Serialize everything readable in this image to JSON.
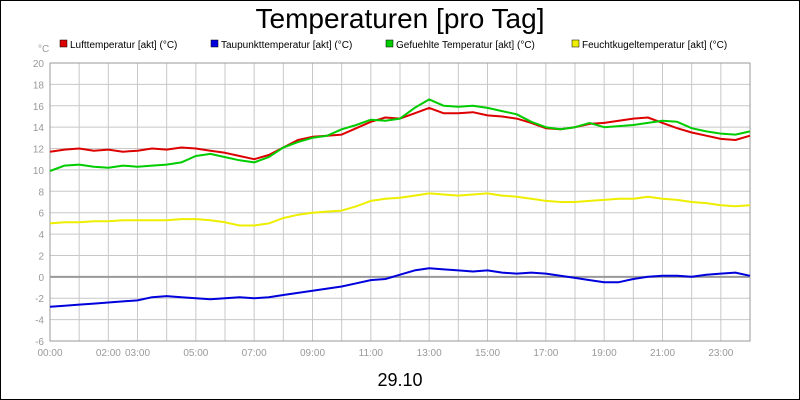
{
  "chart_data": {
    "type": "line",
    "title": "Temperaturen [pro Tag]",
    "y_unit": "°C",
    "date_label": "29.10",
    "grid": true,
    "legend_position": "top",
    "xlim": [
      "00:00",
      "24:00"
    ],
    "ylim": [
      -6,
      20
    ],
    "y_ticks": [
      -6,
      -4,
      -2,
      0,
      2,
      4,
      6,
      8,
      10,
      12,
      14,
      16,
      18,
      20
    ],
    "x_tick_labels": [
      "00:00",
      "02:00",
      "03:00",
      "05:00",
      "07:00",
      "09:00",
      "11:00",
      "13:00",
      "15:00",
      "17:00",
      "19:00",
      "21:00",
      "23:00"
    ],
    "x": [
      "00:00",
      "00:30",
      "01:00",
      "01:30",
      "02:00",
      "02:30",
      "03:00",
      "03:30",
      "04:00",
      "04:30",
      "05:00",
      "05:30",
      "06:00",
      "06:30",
      "07:00",
      "07:30",
      "08:00",
      "08:30",
      "09:00",
      "09:30",
      "10:00",
      "10:30",
      "11:00",
      "11:30",
      "12:00",
      "12:30",
      "13:00",
      "13:30",
      "14:00",
      "14:30",
      "15:00",
      "15:30",
      "16:00",
      "16:30",
      "17:00",
      "17:30",
      "18:00",
      "18:30",
      "19:00",
      "19:30",
      "20:00",
      "20:30",
      "21:00",
      "21:30",
      "22:00",
      "22:30",
      "23:00",
      "23:30",
      "24:00"
    ],
    "series": [
      {
        "name": "Lufttemperatur [akt] (°C)",
        "color": "#dd0000",
        "values": [
          11.7,
          11.9,
          12.0,
          11.8,
          11.9,
          11.7,
          11.8,
          12.0,
          11.9,
          12.1,
          12.0,
          11.8,
          11.6,
          11.3,
          11.0,
          11.4,
          12.1,
          12.8,
          13.1,
          13.2,
          13.3,
          13.9,
          14.5,
          14.9,
          14.8,
          15.3,
          15.8,
          15.3,
          15.3,
          15.4,
          15.1,
          15.0,
          14.8,
          14.4,
          13.9,
          13.8,
          14.0,
          14.3,
          14.4,
          14.6,
          14.8,
          14.9,
          14.4,
          13.9,
          13.5,
          13.2,
          12.9,
          12.8,
          13.2
        ]
      },
      {
        "name": "Taupunkttemperatur [akt] (°C)",
        "color": "#0000dd",
        "values": [
          -2.8,
          -2.7,
          -2.6,
          -2.5,
          -2.4,
          -2.3,
          -2.2,
          -1.9,
          -1.8,
          -1.9,
          -2.0,
          -2.1,
          -2.0,
          -1.9,
          -2.0,
          -1.9,
          -1.7,
          -1.5,
          -1.3,
          -1.1,
          -0.9,
          -0.6,
          -0.3,
          -0.2,
          0.2,
          0.6,
          0.8,
          0.7,
          0.6,
          0.5,
          0.6,
          0.4,
          0.3,
          0.4,
          0.3,
          0.1,
          -0.1,
          -0.3,
          -0.5,
          -0.5,
          -0.2,
          0.0,
          0.1,
          0.1,
          0.0,
          0.2,
          0.3,
          0.4,
          0.1
        ]
      },
      {
        "name": "Gefuehlte Temperatur [akt] (°C)",
        "color": "#00cc00",
        "values": [
          9.9,
          10.4,
          10.5,
          10.3,
          10.2,
          10.4,
          10.3,
          10.4,
          10.5,
          10.7,
          11.3,
          11.5,
          11.2,
          10.9,
          10.7,
          11.2,
          12.1,
          12.6,
          13.0,
          13.2,
          13.8,
          14.2,
          14.7,
          14.6,
          14.8,
          15.8,
          16.6,
          16.0,
          15.9,
          16.0,
          15.8,
          15.5,
          15.2,
          14.5,
          14.0,
          13.8,
          14.0,
          14.4,
          14.0,
          14.1,
          14.2,
          14.4,
          14.6,
          14.5,
          13.9,
          13.6,
          13.4,
          13.3,
          13.6
        ]
      },
      {
        "name": "Feuchtkugeltemperatur [akt] (°C)",
        "color": "#eeee00",
        "values": [
          5.0,
          5.1,
          5.1,
          5.2,
          5.2,
          5.3,
          5.3,
          5.3,
          5.3,
          5.4,
          5.4,
          5.3,
          5.1,
          4.8,
          4.8,
          5.0,
          5.5,
          5.8,
          6.0,
          6.1,
          6.2,
          6.6,
          7.1,
          7.3,
          7.4,
          7.6,
          7.8,
          7.7,
          7.6,
          7.7,
          7.8,
          7.6,
          7.5,
          7.3,
          7.1,
          7.0,
          7.0,
          7.1,
          7.2,
          7.3,
          7.3,
          7.5,
          7.3,
          7.2,
          7.0,
          6.9,
          6.7,
          6.6,
          6.7
        ]
      }
    ]
  }
}
